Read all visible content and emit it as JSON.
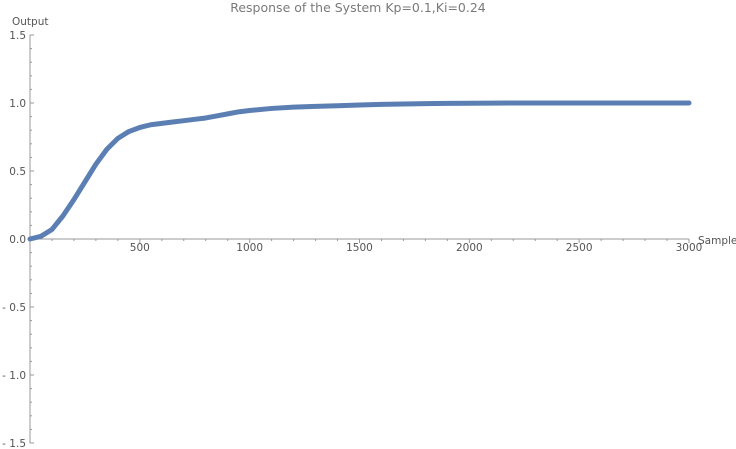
{
  "chart_data": {
    "type": "line",
    "title": "Response  of  the  System  Kp=0.1,Ki=0.24",
    "xlabel": "Sample",
    "ylabel": "Output",
    "xlim": [
      0,
      3000
    ],
    "ylim": [
      -1.5,
      1.5
    ],
    "x_ticks": [
      500,
      1000,
      1500,
      2000,
      2500,
      3000
    ],
    "x_tick_labels": [
      "500",
      "1000",
      "1500",
      "2000",
      "2500",
      "3000"
    ],
    "y_ticks": [
      -1.5,
      -1.0,
      -0.5,
      0.0,
      0.5,
      1.0,
      1.5
    ],
    "y_tick_labels": [
      "- 1.5",
      "- 1.0",
      "- 0.5",
      "0.0",
      "0.5",
      "1.0",
      "1.5"
    ],
    "grid": false,
    "series": [
      {
        "color": "#5b7fb3",
        "x": [
          0,
          50,
          100,
          150,
          200,
          250,
          300,
          350,
          400,
          450,
          500,
          550,
          600,
          650,
          700,
          750,
          800,
          850,
          900,
          950,
          1000,
          1100,
          1200,
          1300,
          1400,
          1500,
          1600,
          1700,
          1800,
          1900,
          2000,
          2100,
          2200,
          2400,
          2600,
          2800,
          3000
        ],
        "y": [
          0.0,
          0.02,
          0.07,
          0.17,
          0.29,
          0.42,
          0.55,
          0.66,
          0.74,
          0.79,
          0.82,
          0.84,
          0.85,
          0.86,
          0.87,
          0.88,
          0.89,
          0.905,
          0.92,
          0.935,
          0.945,
          0.96,
          0.97,
          0.975,
          0.98,
          0.985,
          0.99,
          0.993,
          0.995,
          0.997,
          0.998,
          0.999,
          1.0,
          1.0,
          1.0,
          1.0,
          1.0
        ]
      }
    ]
  }
}
